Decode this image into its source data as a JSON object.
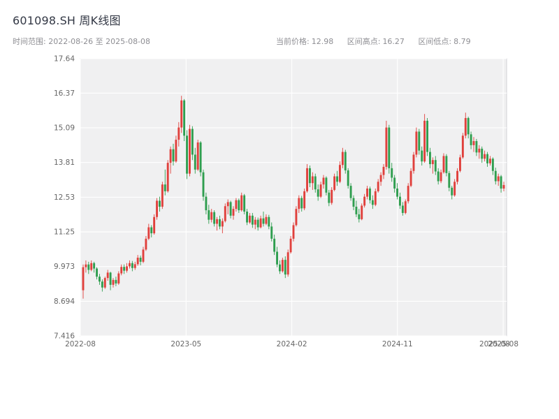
{
  "header": {
    "title": "601098.SH 周K线图",
    "subtitle": "时间范围: 2022-08-26 至 2025-08-08",
    "stats": [
      {
        "label": "当前价格:",
        "value": "12.98"
      },
      {
        "label": "区间高点:",
        "value": "16.27"
      },
      {
        "label": "区间低点:",
        "value": "8.79"
      }
    ]
  },
  "chart_data": {
    "type": "candlestick",
    "title": "601098.SH 周K线图",
    "instrument": "601098.SH",
    "frequency": "weekly",
    "start_date": "2022-08-26",
    "end_date": "2025-08-08",
    "current_price": 12.98,
    "range_high": 16.27,
    "range_low": 8.79,
    "ylim": [
      7.416,
      17.64
    ],
    "y_ticks": [
      "7.416",
      "8.694",
      "9.973",
      "11.25",
      "12.53",
      "13.81",
      "15.09",
      "16.37",
      "17.64"
    ],
    "x_ticks": [
      {
        "label": "2022-08",
        "pos": 0.0
      },
      {
        "label": "2023-05",
        "pos": 0.248
      },
      {
        "label": "2024-02",
        "pos": 0.496
      },
      {
        "label": "2024-11",
        "pos": 0.744
      },
      {
        "label": "2025-08",
        "pos": 0.992
      }
    ],
    "x_end_overlap_label": {
      "label": "2025-08",
      "pos": 0.972
    },
    "grid": true,
    "up_color": "#e0403c",
    "down_color": "#2f9e4f",
    "plot_bg": "#f0f0f1",
    "plot_border": "#cfcfd4",
    "ohlc_columns": [
      "open",
      "high",
      "low",
      "close"
    ],
    "ohlc": [
      [
        9.1,
        10.05,
        8.79,
        9.95
      ],
      [
        9.95,
        10.2,
        9.75,
        10.05
      ],
      [
        10.05,
        10.15,
        9.7,
        9.85
      ],
      [
        9.85,
        10.2,
        9.8,
        10.1
      ],
      [
        10.1,
        10.15,
        9.75,
        9.9
      ],
      [
        9.9,
        9.95,
        9.5,
        9.6
      ],
      [
        9.6,
        9.7,
        9.3,
        9.42
      ],
      [
        9.42,
        9.5,
        9.05,
        9.2
      ],
      [
        9.2,
        9.6,
        9.15,
        9.55
      ],
      [
        9.55,
        9.85,
        9.45,
        9.75
      ],
      [
        9.75,
        9.78,
        9.1,
        9.3
      ],
      [
        9.3,
        9.55,
        9.2,
        9.48
      ],
      [
        9.48,
        9.6,
        9.25,
        9.35
      ],
      [
        9.35,
        9.8,
        9.3,
        9.72
      ],
      [
        9.72,
        10.05,
        9.65,
        9.96
      ],
      [
        9.96,
        10.05,
        9.7,
        9.82
      ],
      [
        9.82,
        10.1,
        9.75,
        9.98
      ],
      [
        9.98,
        10.2,
        9.9,
        10.1
      ],
      [
        10.1,
        10.18,
        9.8,
        9.92
      ],
      [
        9.92,
        10.15,
        9.85,
        10.06
      ],
      [
        10.06,
        10.4,
        10.0,
        10.3
      ],
      [
        10.3,
        10.38,
        10.02,
        10.15
      ],
      [
        10.15,
        10.7,
        10.1,
        10.6
      ],
      [
        10.6,
        11.1,
        10.55,
        11.0
      ],
      [
        11.0,
        11.55,
        10.95,
        11.42
      ],
      [
        11.42,
        11.5,
        11.05,
        11.2
      ],
      [
        11.2,
        11.9,
        11.15,
        11.8
      ],
      [
        11.8,
        12.5,
        11.7,
        12.4
      ],
      [
        12.4,
        12.55,
        12.0,
        12.18
      ],
      [
        12.18,
        13.1,
        12.1,
        13.0
      ],
      [
        13.0,
        13.55,
        12.6,
        12.75
      ],
      [
        12.75,
        13.9,
        12.7,
        13.8
      ],
      [
        13.8,
        14.4,
        13.4,
        14.3
      ],
      [
        14.3,
        14.5,
        13.7,
        13.85
      ],
      [
        13.85,
        14.8,
        13.8,
        14.65
      ],
      [
        14.65,
        15.3,
        14.4,
        15.1
      ],
      [
        15.1,
        16.27,
        14.9,
        16.1
      ],
      [
        16.1,
        16.15,
        14.6,
        14.8
      ],
      [
        14.8,
        15.0,
        13.2,
        13.4
      ],
      [
        13.4,
        15.2,
        13.3,
        15.05
      ],
      [
        15.05,
        15.15,
        13.9,
        14.1
      ],
      [
        14.1,
        14.35,
        13.4,
        13.55
      ],
      [
        13.55,
        14.65,
        13.5,
        14.55
      ],
      [
        14.55,
        14.6,
        13.3,
        13.45
      ],
      [
        13.45,
        13.55,
        12.4,
        12.55
      ],
      [
        12.55,
        12.7,
        11.9,
        12.05
      ],
      [
        12.05,
        12.25,
        11.55,
        11.7
      ],
      [
        11.7,
        12.1,
        11.6,
        11.98
      ],
      [
        11.98,
        12.05,
        11.45,
        11.55
      ],
      [
        11.55,
        11.8,
        11.3,
        11.72
      ],
      [
        11.72,
        11.85,
        11.35,
        11.45
      ],
      [
        11.45,
        11.75,
        11.2,
        11.65
      ],
      [
        11.65,
        12.3,
        11.6,
        12.2
      ],
      [
        12.2,
        12.45,
        11.9,
        12.35
      ],
      [
        12.35,
        12.4,
        11.75,
        11.85
      ],
      [
        11.85,
        12.2,
        11.7,
        12.1
      ],
      [
        12.1,
        12.5,
        12.0,
        12.42
      ],
      [
        12.42,
        12.48,
        11.95,
        12.05
      ],
      [
        12.05,
        12.7,
        12.0,
        12.6
      ],
      [
        12.6,
        12.65,
        11.9,
        12.0
      ],
      [
        12.0,
        12.1,
        11.5,
        11.6
      ],
      [
        11.6,
        11.95,
        11.55,
        11.85
      ],
      [
        11.85,
        11.95,
        11.4,
        11.52
      ],
      [
        11.52,
        11.8,
        11.35,
        11.7
      ],
      [
        11.7,
        11.78,
        11.3,
        11.42
      ],
      [
        11.42,
        11.85,
        11.38,
        11.75
      ],
      [
        11.75,
        12.0,
        11.45,
        11.55
      ],
      [
        11.55,
        11.9,
        11.5,
        11.8
      ],
      [
        11.8,
        11.88,
        11.35,
        11.45
      ],
      [
        11.45,
        11.6,
        10.9,
        11.0
      ],
      [
        11.0,
        11.15,
        10.4,
        10.52
      ],
      [
        10.52,
        10.7,
        9.95,
        10.05
      ],
      [
        10.05,
        10.2,
        9.7,
        9.8
      ],
      [
        9.8,
        10.3,
        9.75,
        10.22
      ],
      [
        10.22,
        10.35,
        9.55,
        9.68
      ],
      [
        9.68,
        10.6,
        9.6,
        10.5
      ],
      [
        10.5,
        11.1,
        10.45,
        11.0
      ],
      [
        11.0,
        11.6,
        10.9,
        11.5
      ],
      [
        11.5,
        12.2,
        11.45,
        12.1
      ],
      [
        12.1,
        12.6,
        11.95,
        12.5
      ],
      [
        12.5,
        12.58,
        12.0,
        12.12
      ],
      [
        12.12,
        12.85,
        12.05,
        12.75
      ],
      [
        12.75,
        13.75,
        12.7,
        13.6
      ],
      [
        13.6,
        13.7,
        12.9,
        13.05
      ],
      [
        13.05,
        13.45,
        12.8,
        13.3
      ],
      [
        13.3,
        13.4,
        12.7,
        12.82
      ],
      [
        12.82,
        13.0,
        12.4,
        12.55
      ],
      [
        12.55,
        13.1,
        12.5,
        13.0
      ],
      [
        13.0,
        13.35,
        12.85,
        13.25
      ],
      [
        13.25,
        13.3,
        12.6,
        12.7
      ],
      [
        12.7,
        12.8,
        12.2,
        12.32
      ],
      [
        12.32,
        12.9,
        12.25,
        12.8
      ],
      [
        12.8,
        13.4,
        12.75,
        13.3
      ],
      [
        13.3,
        13.5,
        12.95,
        13.1
      ],
      [
        13.1,
        13.85,
        13.05,
        13.72
      ],
      [
        13.72,
        14.35,
        13.6,
        14.2
      ],
      [
        14.2,
        14.28,
        13.4,
        13.52
      ],
      [
        13.52,
        13.6,
        12.85,
        12.95
      ],
      [
        12.95,
        13.05,
        12.4,
        12.5
      ],
      [
        12.5,
        12.6,
        12.05,
        12.18
      ],
      [
        12.18,
        12.4,
        11.8,
        11.9
      ],
      [
        11.9,
        12.1,
        11.6,
        11.72
      ],
      [
        11.72,
        12.3,
        11.68,
        12.22
      ],
      [
        12.22,
        12.65,
        12.15,
        12.55
      ],
      [
        12.55,
        12.95,
        12.45,
        12.85
      ],
      [
        12.85,
        12.92,
        12.3,
        12.42
      ],
      [
        12.42,
        12.6,
        12.1,
        12.25
      ],
      [
        12.25,
        12.85,
        12.2,
        12.75
      ],
      [
        12.75,
        13.2,
        12.7,
        13.1
      ],
      [
        13.1,
        13.45,
        12.95,
        13.35
      ],
      [
        13.35,
        13.75,
        13.2,
        13.65
      ],
      [
        13.65,
        15.35,
        13.55,
        15.1
      ],
      [
        15.1,
        15.2,
        13.4,
        13.6
      ],
      [
        13.6,
        13.8,
        13.1,
        13.25
      ],
      [
        13.25,
        13.35,
        12.7,
        12.85
      ],
      [
        12.85,
        13.05,
        12.45,
        12.55
      ],
      [
        12.55,
        12.7,
        12.1,
        12.22
      ],
      [
        12.22,
        12.35,
        11.85,
        11.95
      ],
      [
        11.95,
        12.45,
        11.9,
        12.38
      ],
      [
        12.38,
        13.05,
        12.3,
        12.95
      ],
      [
        12.95,
        13.6,
        12.9,
        13.5
      ],
      [
        13.5,
        14.2,
        13.4,
        14.1
      ],
      [
        14.1,
        15.1,
        14.0,
        14.95
      ],
      [
        14.95,
        15.05,
        14.1,
        14.25
      ],
      [
        14.25,
        14.4,
        13.7,
        13.85
      ],
      [
        13.85,
        15.6,
        13.8,
        15.35
      ],
      [
        15.35,
        15.45,
        14.05,
        14.2
      ],
      [
        14.2,
        14.35,
        13.6,
        13.75
      ],
      [
        13.75,
        14.0,
        13.4,
        13.9
      ],
      [
        13.9,
        14.05,
        13.35,
        13.48
      ],
      [
        13.48,
        13.6,
        13.0,
        13.12
      ],
      [
        13.12,
        13.55,
        13.05,
        13.45
      ],
      [
        13.45,
        14.15,
        13.4,
        14.05
      ],
      [
        14.05,
        14.12,
        13.3,
        13.42
      ],
      [
        13.42,
        13.5,
        12.75,
        12.88
      ],
      [
        12.88,
        12.95,
        12.45,
        12.6
      ],
      [
        12.6,
        13.2,
        12.55,
        13.1
      ],
      [
        13.1,
        13.6,
        13.0,
        13.5
      ],
      [
        13.5,
        14.1,
        13.45,
        14.0
      ],
      [
        14.0,
        14.9,
        13.95,
        14.8
      ],
      [
        14.8,
        15.65,
        14.7,
        15.45
      ],
      [
        15.45,
        15.5,
        14.7,
        14.85
      ],
      [
        14.85,
        14.95,
        14.3,
        14.45
      ],
      [
        14.45,
        14.75,
        14.2,
        14.6
      ],
      [
        14.6,
        14.68,
        14.05,
        14.18
      ],
      [
        14.18,
        14.45,
        13.95,
        14.32
      ],
      [
        14.32,
        14.4,
        13.8,
        13.95
      ],
      [
        13.95,
        14.25,
        13.85,
        14.12
      ],
      [
        14.12,
        14.2,
        13.65,
        13.78
      ],
      [
        13.78,
        14.05,
        13.7,
        13.95
      ],
      [
        13.95,
        14.0,
        13.35,
        13.5
      ],
      [
        13.5,
        13.62,
        13.0,
        13.12
      ],
      [
        13.12,
        13.4,
        12.95,
        13.3
      ],
      [
        13.3,
        13.35,
        12.7,
        12.85
      ],
      [
        12.85,
        13.1,
        12.75,
        12.98
      ]
    ]
  }
}
